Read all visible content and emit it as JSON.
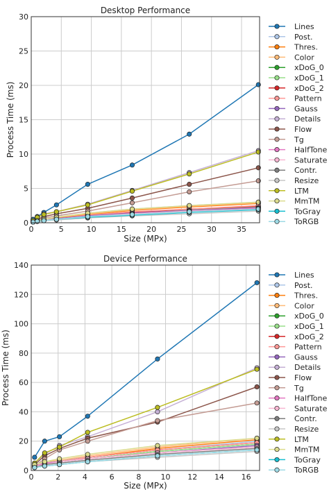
{
  "chart_data": [
    {
      "type": "line",
      "title": "Desktop Performance",
      "xlabel": "Size (MPx)",
      "ylabel": "Process Time (ms)",
      "xlim": [
        0,
        38
      ],
      "ylim": [
        0,
        30
      ],
      "xticks": [
        0,
        5,
        10,
        15,
        20,
        25,
        30,
        35
      ],
      "yticks": [
        0,
        5,
        10,
        15,
        20,
        25,
        30
      ],
      "grid": true,
      "legend": "right-outside",
      "x": [
        0.3,
        1.0,
        2.1,
        4.2,
        9.4,
        16.8,
        26.3,
        37.8
      ],
      "series": [
        {
          "name": "Lines",
          "color": "#1f77b4",
          "values": [
            0.5,
            0.9,
            1.5,
            2.6,
            5.6,
            8.4,
            12.9,
            20.1
          ]
        },
        {
          "name": "Post.",
          "color": "#aec7e8",
          "values": [
            0.1,
            0.3,
            0.5,
            0.8,
            1.4,
            2.0,
            2.5,
            3.0
          ]
        },
        {
          "name": "Thres.",
          "color": "#ff7f0e",
          "values": [
            0.1,
            0.3,
            0.5,
            0.7,
            1.2,
            1.8,
            2.3,
            2.8
          ]
        },
        {
          "name": "Color",
          "color": "#ffbb78",
          "values": [
            0.1,
            0.3,
            0.5,
            0.8,
            1.3,
            1.9,
            2.4,
            2.9
          ]
        },
        {
          "name": "xDoG_0",
          "color": "#2ca02c",
          "values": [
            0.1,
            0.2,
            0.4,
            0.6,
            1.0,
            1.4,
            1.8,
            2.2
          ]
        },
        {
          "name": "xDoG_1",
          "color": "#98df8a",
          "values": [
            0.1,
            0.2,
            0.4,
            0.6,
            1.0,
            1.5,
            1.9,
            2.3
          ]
        },
        {
          "name": "xDoG_2",
          "color": "#d62728",
          "values": [
            0.1,
            0.2,
            0.4,
            0.6,
            1.1,
            1.5,
            2.0,
            2.4
          ]
        },
        {
          "name": "Pattern",
          "color": "#ff9896",
          "values": [
            0.1,
            0.2,
            0.4,
            0.6,
            1.1,
            1.6,
            2.0,
            2.5
          ]
        },
        {
          "name": "Gauss",
          "color": "#9467bd",
          "values": [
            0.1,
            0.2,
            0.4,
            0.6,
            1.0,
            1.4,
            1.8,
            2.2
          ]
        },
        {
          "name": "Details",
          "color": "#c5b0d5",
          "values": [
            0.3,
            0.8,
            1.3,
            1.6,
            2.7,
            4.7,
            7.3,
            10.5
          ]
        },
        {
          "name": "Flow",
          "color": "#8c564b",
          "values": [
            0.2,
            0.5,
            0.9,
            1.3,
            2.1,
            3.6,
            5.6,
            8.0
          ]
        },
        {
          "name": "Tg",
          "color": "#c49c94",
          "values": [
            0.2,
            0.4,
            0.7,
            1.0,
            1.7,
            2.9,
            4.5,
            6.1
          ]
        },
        {
          "name": "HalfTone",
          "color": "#e377c2",
          "values": [
            0.1,
            0.2,
            0.4,
            0.5,
            0.9,
            1.3,
            1.7,
            2.1
          ]
        },
        {
          "name": "Saturate",
          "color": "#f7b6d2",
          "values": [
            0.1,
            0.2,
            0.4,
            0.5,
            0.9,
            1.3,
            1.7,
            2.0
          ]
        },
        {
          "name": "Contr.",
          "color": "#7f7f7f",
          "values": [
            0.1,
            0.2,
            0.3,
            0.5,
            0.8,
            1.2,
            1.6,
            2.0
          ]
        },
        {
          "name": "Resize",
          "color": "#c7c7c7",
          "values": [
            0.1,
            0.2,
            0.3,
            0.4,
            0.7,
            1.0,
            1.3,
            1.7
          ]
        },
        {
          "name": "LTM",
          "color": "#bcbd22",
          "values": [
            0.3,
            0.8,
            1.2,
            1.6,
            2.6,
            4.6,
            7.1,
            10.3
          ]
        },
        {
          "name": "MmTM",
          "color": "#dbdb8d",
          "values": [
            0.1,
            0.3,
            0.5,
            0.8,
            1.4,
            2.0,
            2.5,
            3.0
          ]
        },
        {
          "name": "ToGray",
          "color": "#17becf",
          "values": [
            0.1,
            0.2,
            0.3,
            0.5,
            0.8,
            1.1,
            1.5,
            1.9
          ]
        },
        {
          "name": "ToRGB",
          "color": "#9edae5",
          "values": [
            0.1,
            0.2,
            0.3,
            0.5,
            0.9,
            1.2,
            1.6,
            2.0
          ]
        }
      ]
    },
    {
      "type": "line",
      "title": "Device Performance",
      "xlabel": "Size (MPx)",
      "ylabel": "Process Time (ms)",
      "xlim": [
        0,
        17
      ],
      "ylim": [
        0,
        140
      ],
      "xticks": [
        0,
        2,
        4,
        6,
        8,
        10,
        12,
        14,
        16
      ],
      "yticks": [
        0,
        20,
        40,
        60,
        80,
        100,
        120,
        140
      ],
      "grid": true,
      "legend": "right-outside",
      "x": [
        0.25,
        1.0,
        2.1,
        4.2,
        9.4,
        16.8
      ],
      "series": [
        {
          "name": "Lines",
          "color": "#1f77b4",
          "values": [
            9,
            20,
            23,
            37,
            76,
            128
          ]
        },
        {
          "name": "Post.",
          "color": "#aec7e8",
          "values": [
            3,
            5,
            7,
            9,
            14,
            20
          ]
        },
        {
          "name": "Thres.",
          "color": "#ff7f0e",
          "values": [
            3,
            5,
            6,
            9,
            15,
            21
          ]
        },
        {
          "name": "Color",
          "color": "#ffbb78",
          "values": [
            4,
            6,
            7,
            10,
            16,
            22
          ]
        },
        {
          "name": "xDoG_0",
          "color": "#2ca02c",
          "values": [
            3,
            5,
            6,
            8,
            13,
            18
          ]
        },
        {
          "name": "xDoG_1",
          "color": "#98df8a",
          "values": [
            3,
            5,
            6,
            8,
            13,
            18
          ]
        },
        {
          "name": "xDoG_2",
          "color": "#d62728",
          "values": [
            3,
            5,
            6,
            9,
            14,
            19
          ]
        },
        {
          "name": "Pattern",
          "color": "#ff9896",
          "values": [
            3,
            5,
            6,
            9,
            14,
            19
          ]
        },
        {
          "name": "Gauss",
          "color": "#9467bd",
          "values": [
            3,
            5,
            6,
            8,
            12,
            17
          ]
        },
        {
          "name": "Details",
          "color": "#c5b0d5",
          "values": [
            5,
            11,
            17,
            23,
            40,
            70
          ]
        },
        {
          "name": "Flow",
          "color": "#8c564b",
          "values": [
            4,
            10,
            15,
            22,
            33,
            57
          ]
        },
        {
          "name": "Tg",
          "color": "#c49c94",
          "values": [
            3,
            8,
            14,
            20,
            34,
            46
          ]
        },
        {
          "name": "HalfTone",
          "color": "#e377c2",
          "values": [
            3,
            5,
            6,
            8,
            12,
            16
          ]
        },
        {
          "name": "Saturate",
          "color": "#f7b6d2",
          "values": [
            3,
            4,
            6,
            8,
            12,
            16
          ]
        },
        {
          "name": "Contr.",
          "color": "#7f7f7f",
          "values": [
            2,
            4,
            5,
            7,
            11,
            15
          ]
        },
        {
          "name": "Resize",
          "color": "#c7c7c7",
          "values": [
            2,
            3,
            4,
            6,
            9,
            13
          ]
        },
        {
          "name": "LTM",
          "color": "#bcbd22",
          "values": [
            5,
            12,
            16,
            26,
            43,
            69
          ]
        },
        {
          "name": "MmTM",
          "color": "#dbdb8d",
          "values": [
            4,
            6,
            8,
            11,
            17,
            22
          ]
        },
        {
          "name": "ToGray",
          "color": "#17becf",
          "values": [
            2,
            3,
            4,
            6,
            10,
            14
          ]
        },
        {
          "name": "ToRGB",
          "color": "#9edae5",
          "values": [
            2,
            3,
            4,
            6,
            10,
            14
          ]
        }
      ]
    }
  ]
}
